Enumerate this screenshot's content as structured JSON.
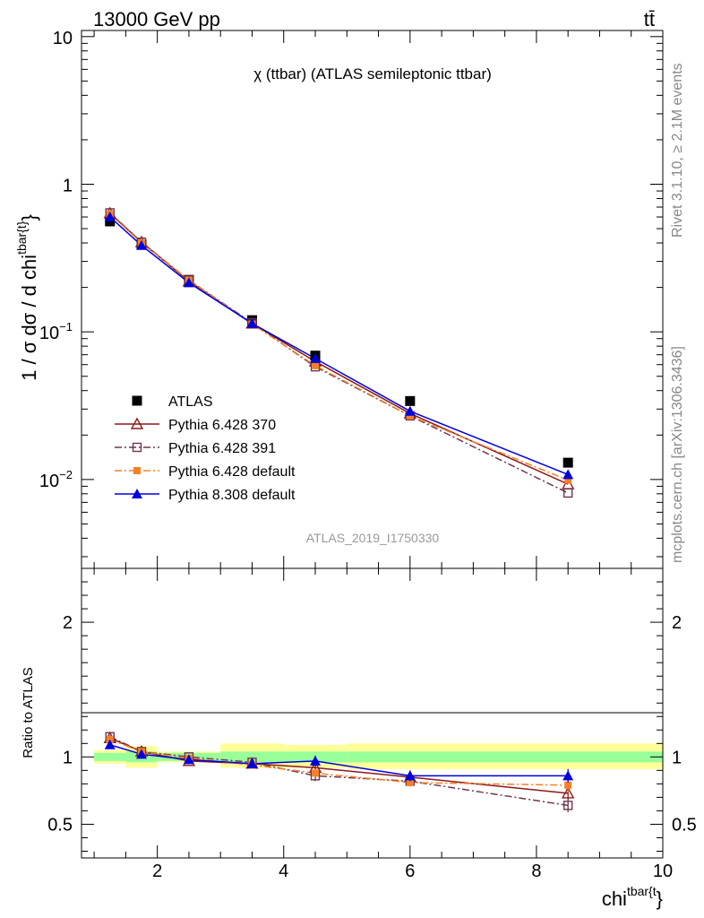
{
  "header": {
    "energy": "13000 GeV pp",
    "process": "tt̄"
  },
  "side_labels": {
    "rivet": "Rivet 3.1.10, ≥ 2.1M events",
    "mcplots": "mcplots.cern.ch [arXiv:1306.3436]"
  },
  "colors": {
    "ATLAS": "#000000",
    "Pythia 6.428 370": "#8b1a1a",
    "Pythia 6.428 391": "#6e3550",
    "Pythia 6.428 default": "#f58025",
    "Pythia 8.308 default": "#0000dd",
    "band_inner": "#99ff99",
    "band_outer": "#ffff99"
  },
  "chart_data": [
    {
      "type": "line",
      "title": "χ (ttbar) (ATLAS semileptonic ttbar)",
      "watermark": "ATLAS_2019_I1750330",
      "ylabel": "1 / σ dσ / d chi^{tbar{t}}",
      "yscale": "log",
      "ylim": [
        0.0025,
        11
      ],
      "xlim": [
        0.8,
        10
      ],
      "ytick_labels": [
        "10^{-2}",
        "10^{-1}",
        "1",
        "10"
      ],
      "legend_position": "middle-left",
      "x": [
        1.25,
        1.75,
        2.5,
        3.5,
        4.5,
        6.0,
        8.5
      ],
      "series": [
        {
          "name": "ATLAS",
          "marker": "square-filled",
          "style": "none",
          "values": [
            0.56,
            0.39,
            0.225,
            0.12,
            0.069,
            0.034,
            0.013
          ]
        },
        {
          "name": "Pythia 6.428 370",
          "marker": "triangle-open",
          "style": "solid",
          "values": [
            0.635,
            0.405,
            0.22,
            0.114,
            0.063,
            0.028,
            0.0093
          ]
        },
        {
          "name": "Pythia 6.428 391",
          "marker": "square-open",
          "style": "dashdot",
          "values": [
            0.64,
            0.405,
            0.224,
            0.115,
            0.058,
            0.027,
            0.0081
          ]
        },
        {
          "name": "Pythia 6.428 default",
          "marker": "square-filled-small",
          "style": "dashdot",
          "values": [
            0.63,
            0.4,
            0.224,
            0.113,
            0.059,
            0.027,
            0.0099
          ]
        },
        {
          "name": "Pythia 8.308 default",
          "marker": "triangle-filled",
          "style": "solid",
          "values": [
            0.6,
            0.385,
            0.215,
            0.114,
            0.066,
            0.029,
            0.0108
          ]
        }
      ]
    },
    {
      "type": "line",
      "ylabel": "Ratio to ATLAS",
      "xlabel": "chi^{tbar{t}}",
      "ylim": [
        0.25,
        2.4
      ],
      "xlim": [
        0.8,
        10
      ],
      "xtick_labels": [
        "2",
        "4",
        "6",
        "8",
        "10"
      ],
      "ytick_labels": [
        "0.5",
        "1",
        "2"
      ],
      "band_edges": [
        1.0,
        1.5,
        2.0,
        3.0,
        4.0,
        5.0,
        7.0,
        10.0
      ],
      "band_inner": [
        [
          0.97,
          1.03
        ],
        [
          0.96,
          1.04
        ],
        [
          0.97,
          1.03
        ],
        [
          0.96,
          1.04
        ],
        [
          0.96,
          1.04
        ],
        [
          0.96,
          1.04
        ],
        [
          0.96,
          1.04
        ]
      ],
      "band_outer": [
        [
          0.95,
          1.05
        ],
        [
          0.92,
          1.08
        ],
        [
          0.96,
          1.04
        ],
        [
          0.92,
          1.1
        ],
        [
          0.92,
          1.09
        ],
        [
          0.91,
          1.1
        ],
        [
          0.91,
          1.1
        ]
      ],
      "x": [
        1.25,
        1.75,
        2.5,
        3.5,
        4.5,
        6.0,
        8.5
      ],
      "series": [
        {
          "name": "Pythia 6.428 370",
          "values": [
            1.14,
            1.04,
            0.97,
            0.95,
            0.92,
            0.85,
            0.73
          ],
          "errors": [
            0.01,
            0.01,
            0.01,
            0.02,
            0.03,
            0.03,
            0.05
          ]
        },
        {
          "name": "Pythia 6.428 391",
          "values": [
            1.15,
            1.04,
            1.0,
            0.96,
            0.86,
            0.82,
            0.64
          ],
          "errors": [
            0.01,
            0.01,
            0.01,
            0.02,
            0.04,
            0.03,
            0.05
          ]
        },
        {
          "name": "Pythia 6.428 default",
          "values": [
            1.13,
            1.04,
            0.99,
            0.94,
            0.88,
            0.81,
            0.79
          ],
          "errors": [
            0.01,
            0.01,
            0.01,
            0.02,
            0.03,
            0.03,
            0.05
          ]
        },
        {
          "name": "Pythia 8.308 default",
          "values": [
            1.09,
            1.02,
            0.98,
            0.95,
            0.97,
            0.86,
            0.86
          ],
          "errors": [
            0.01,
            0.01,
            0.01,
            0.02,
            0.04,
            0.04,
            0.05
          ]
        }
      ]
    }
  ]
}
